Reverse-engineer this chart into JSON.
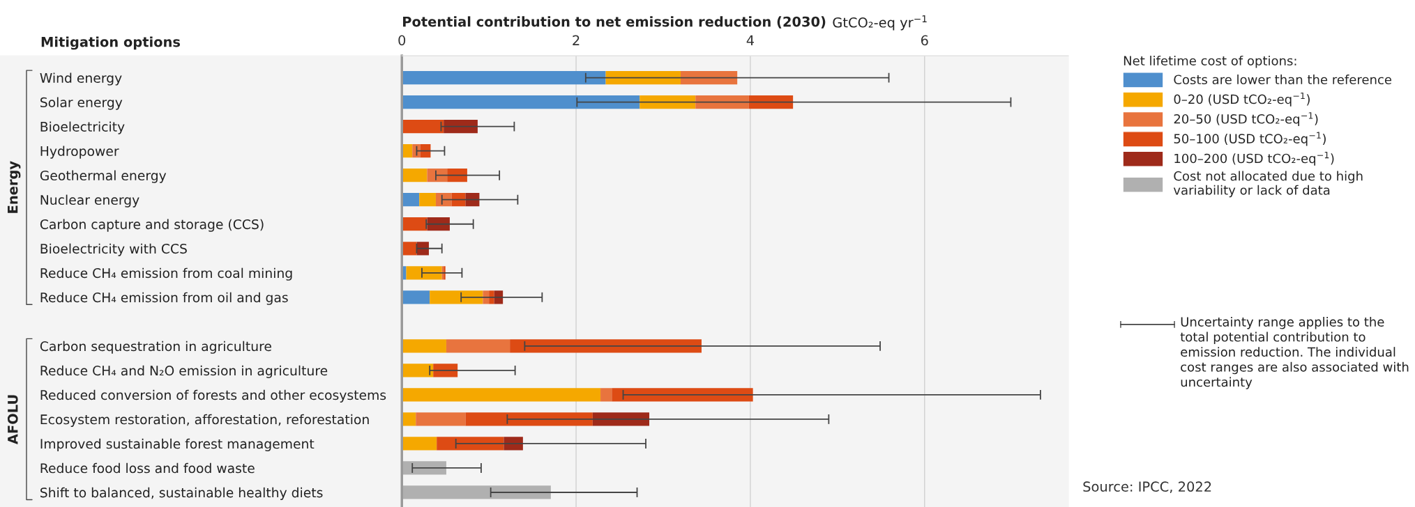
{
  "chart_data": {
    "type": "bar",
    "orientation": "horizontal",
    "stacked": true,
    "title": "Potential contribution to net emission reduction (2030)",
    "xlabel": "GtCO₂-eq yr$^{−1}$",
    "ylabel": "Mitigation options",
    "legend_title": "Net lifetime cost of options:",
    "categories": [
      "Wind energy",
      "Solar energy",
      "Bioelectricity",
      "Hydropower",
      "Geothermal energy",
      "Nuclear energy",
      "Carbon capture and storage (CCS)",
      "Bioelectricity with CCS",
      "Reduce CH₄ emission from coal mining",
      "Reduce CH₄ emission from oil and gas",
      null,
      "Carbon sequestration in agriculture",
      "Reduce CH₄ and N₂O emission in agriculture",
      "Reduced conversion of forests and other ecosystems",
      "Ecosystem restoration, afforestation, reforestation",
      "Improved sustainable forest management",
      "Reduce food loss and food waste",
      "Shift to balanced, sustainable healthy diets"
    ],
    "series": [
      {
        "name": "Costs are lower than the reference",
        "color": "#4f8fcd",
        "values": [
          2.34,
          2.73,
          null,
          null,
          null,
          0.2,
          null,
          null,
          0.05,
          0.32,
          null,
          null,
          null,
          null,
          null,
          null,
          null,
          null
        ]
      },
      {
        "name": "0–20 (USD tCO₂-eq$^{−1}$)",
        "color": "#f5a800",
        "values": [
          0.86,
          0.64,
          null,
          0.12,
          0.29,
          0.19,
          null,
          null,
          0.41,
          0.61,
          null,
          0.51,
          0.36,
          2.28,
          0.16,
          0.4,
          null,
          null
        ]
      },
      {
        "name": "20–50 (USD tCO₂-eq$^{−1}$)",
        "color": "#e8743e",
        "values": [
          0.65,
          0.61,
          null,
          0.09,
          0.23,
          0.18,
          null,
          null,
          0.02,
          0.07,
          null,
          0.73,
          null,
          0.13,
          0.57,
          null,
          null,
          null
        ],
        "errors": [
          [
            2.11,
            5.59
          ],
          null,
          null,
          null,
          null,
          null,
          null,
          null,
          null,
          null,
          null,
          null,
          null,
          null,
          null,
          null,
          null,
          null
        ]
      },
      {
        "name": "50–100 (USD tCO₂-eq$^{−1}$)",
        "color": "#dd4b14",
        "values": [
          null,
          0.51,
          0.48,
          0.12,
          0.23,
          0.16,
          0.29,
          0.17,
          0.02,
          0.06,
          null,
          2.2,
          0.28,
          1.62,
          1.46,
          0.77,
          null,
          null
        ],
        "errors": [
          null,
          [
            2.01,
            6.99
          ],
          null,
          [
            0.17,
            0.49
          ],
          [
            0.39,
            1.12
          ],
          null,
          null,
          null,
          [
            0.23,
            0.69
          ],
          null,
          null,
          [
            1.41,
            5.49
          ],
          [
            0.32,
            1.3
          ],
          [
            2.54,
            7.33
          ],
          null,
          null,
          null,
          null
        ]
      },
      {
        "name": "100–200 (USD tCO₂-eq$^{−1}$)",
        "color": "#9e2a1a",
        "values": [
          null,
          null,
          0.39,
          null,
          null,
          0.16,
          0.26,
          0.14,
          null,
          0.1,
          null,
          null,
          null,
          null,
          0.65,
          0.22,
          null,
          null
        ],
        "errors": [
          null,
          null,
          [
            0.45,
            1.29
          ],
          null,
          null,
          [
            0.46,
            1.33
          ],
          [
            0.28,
            0.82
          ],
          [
            0.17,
            0.46
          ],
          null,
          [
            0.68,
            1.61
          ],
          null,
          null,
          null,
          null,
          [
            1.21,
            4.9
          ],
          [
            0.62,
            2.8
          ],
          null,
          null
        ]
      },
      {
        "name": "Cost not allocated due to high\nvariability or lack of data",
        "color": "#b0b0b0",
        "values": [
          null,
          null,
          null,
          null,
          null,
          null,
          null,
          null,
          null,
          null,
          null,
          null,
          null,
          null,
          null,
          null,
          0.51,
          1.71
        ],
        "errors": [
          null,
          null,
          null,
          null,
          null,
          null,
          null,
          null,
          null,
          null,
          null,
          null,
          null,
          null,
          null,
          null,
          [
            0.12,
            0.91
          ],
          [
            1.02,
            2.7
          ]
        ]
      }
    ],
    "xlim": [
      0,
      7.65
    ],
    "xticks": [
      0,
      2,
      4,
      6
    ],
    "grid": "x",
    "legend": "right",
    "annotations": [
      "Energy",
      "AFOLU",
      "Uncertainty range applies to the total potential contribution to emission reduction. The individual cost ranges are also associated with uncertainty",
      "Source: IPCC, 2022"
    ]
  }
}
